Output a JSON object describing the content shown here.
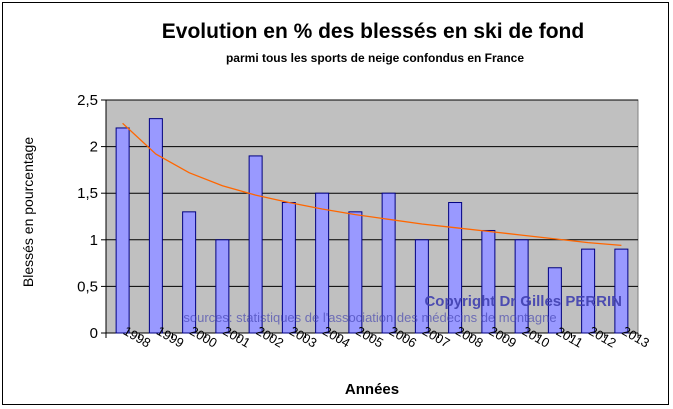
{
  "chart_data": {
    "type": "bar",
    "title": "Evolution en % des blessés en ski de fond",
    "subtitle": "parmi tous les sports de neige confondus en France",
    "xlabel": "Années",
    "ylabel": "Blessés en pourcentage",
    "categories": [
      "1998",
      "1999",
      "2000",
      "2001",
      "2002",
      "2003",
      "2004",
      "2005",
      "2006",
      "2007",
      "2008",
      "2009",
      "2010",
      "2011",
      "2012",
      "2013"
    ],
    "values": [
      2.2,
      2.3,
      1.3,
      1.0,
      1.9,
      1.4,
      1.5,
      1.3,
      1.5,
      1.0,
      1.4,
      1.1,
      1.0,
      0.7,
      0.9,
      0.9
    ],
    "trend": [
      2.25,
      1.92,
      1.72,
      1.58,
      1.48,
      1.4,
      1.33,
      1.27,
      1.22,
      1.17,
      1.13,
      1.09,
      1.05,
      1.01,
      0.97,
      0.94
    ],
    "ylim": [
      0,
      2.5
    ],
    "yticks": [
      "0",
      "0,5",
      "1",
      "1,5",
      "2",
      "2,5"
    ],
    "grid": true,
    "legend": "none",
    "colors": {
      "bar_fill": "#9999ff",
      "bar_stroke": "#000080",
      "trend": "#ff6600",
      "plot_bg": "#c0c0c0",
      "watermark": "#4040b0"
    },
    "annotations": {
      "copyright": "Copyright Dr Gilles PERRIN",
      "sources": "sources: statistiques de l'association des médecins de montagne"
    }
  }
}
